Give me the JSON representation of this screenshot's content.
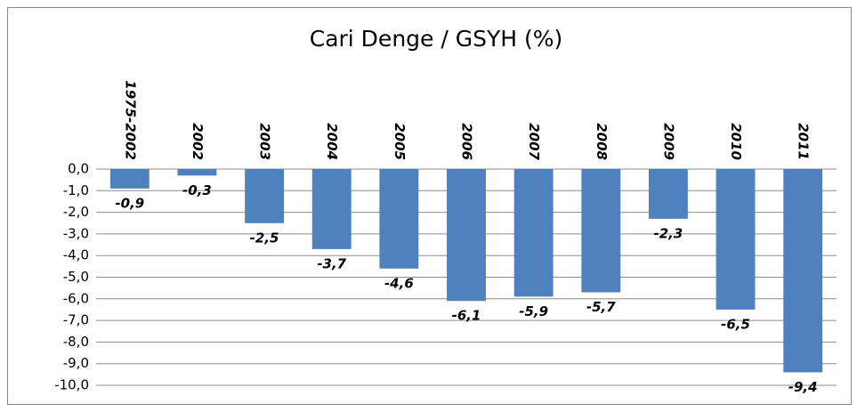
{
  "chart_data": {
    "type": "bar",
    "title": "Cari Denge / GSYH (%)",
    "categories": [
      "1975-2002",
      "2002",
      "2003",
      "2004",
      "2005",
      "2006",
      "2007",
      "2008",
      "2009",
      "2010",
      "2011"
    ],
    "values": [
      -0.9,
      -0.3,
      -2.5,
      -3.7,
      -4.6,
      -6.1,
      -5.9,
      -5.7,
      -2.3,
      -6.5,
      -9.4
    ],
    "value_labels": [
      "-0,9",
      "-0,3",
      "-2,5",
      "-3,7",
      "-4,6",
      "-6,1",
      "-5,9",
      "-5,7",
      "-2,3",
      "-6,5",
      "-9,4"
    ],
    "color": "#4f81bd",
    "ylim": [
      -10,
      0
    ],
    "yticks": [
      {
        "value": 0,
        "label": "0,0"
      },
      {
        "value": -1,
        "label": "-1,0"
      },
      {
        "value": -2,
        "label": "-2,0"
      },
      {
        "value": -3,
        "label": "-3,0"
      },
      {
        "value": -4,
        "label": "-4,0"
      },
      {
        "value": -5,
        "label": "-5,0"
      },
      {
        "value": -6,
        "label": "-6,0"
      },
      {
        "value": -7,
        "label": "-7,0"
      },
      {
        "value": -8,
        "label": "-8,0"
      },
      {
        "value": -9,
        "label": "-9,0"
      },
      {
        "value": -10,
        "label": "-10,0"
      }
    ],
    "grid": true
  }
}
